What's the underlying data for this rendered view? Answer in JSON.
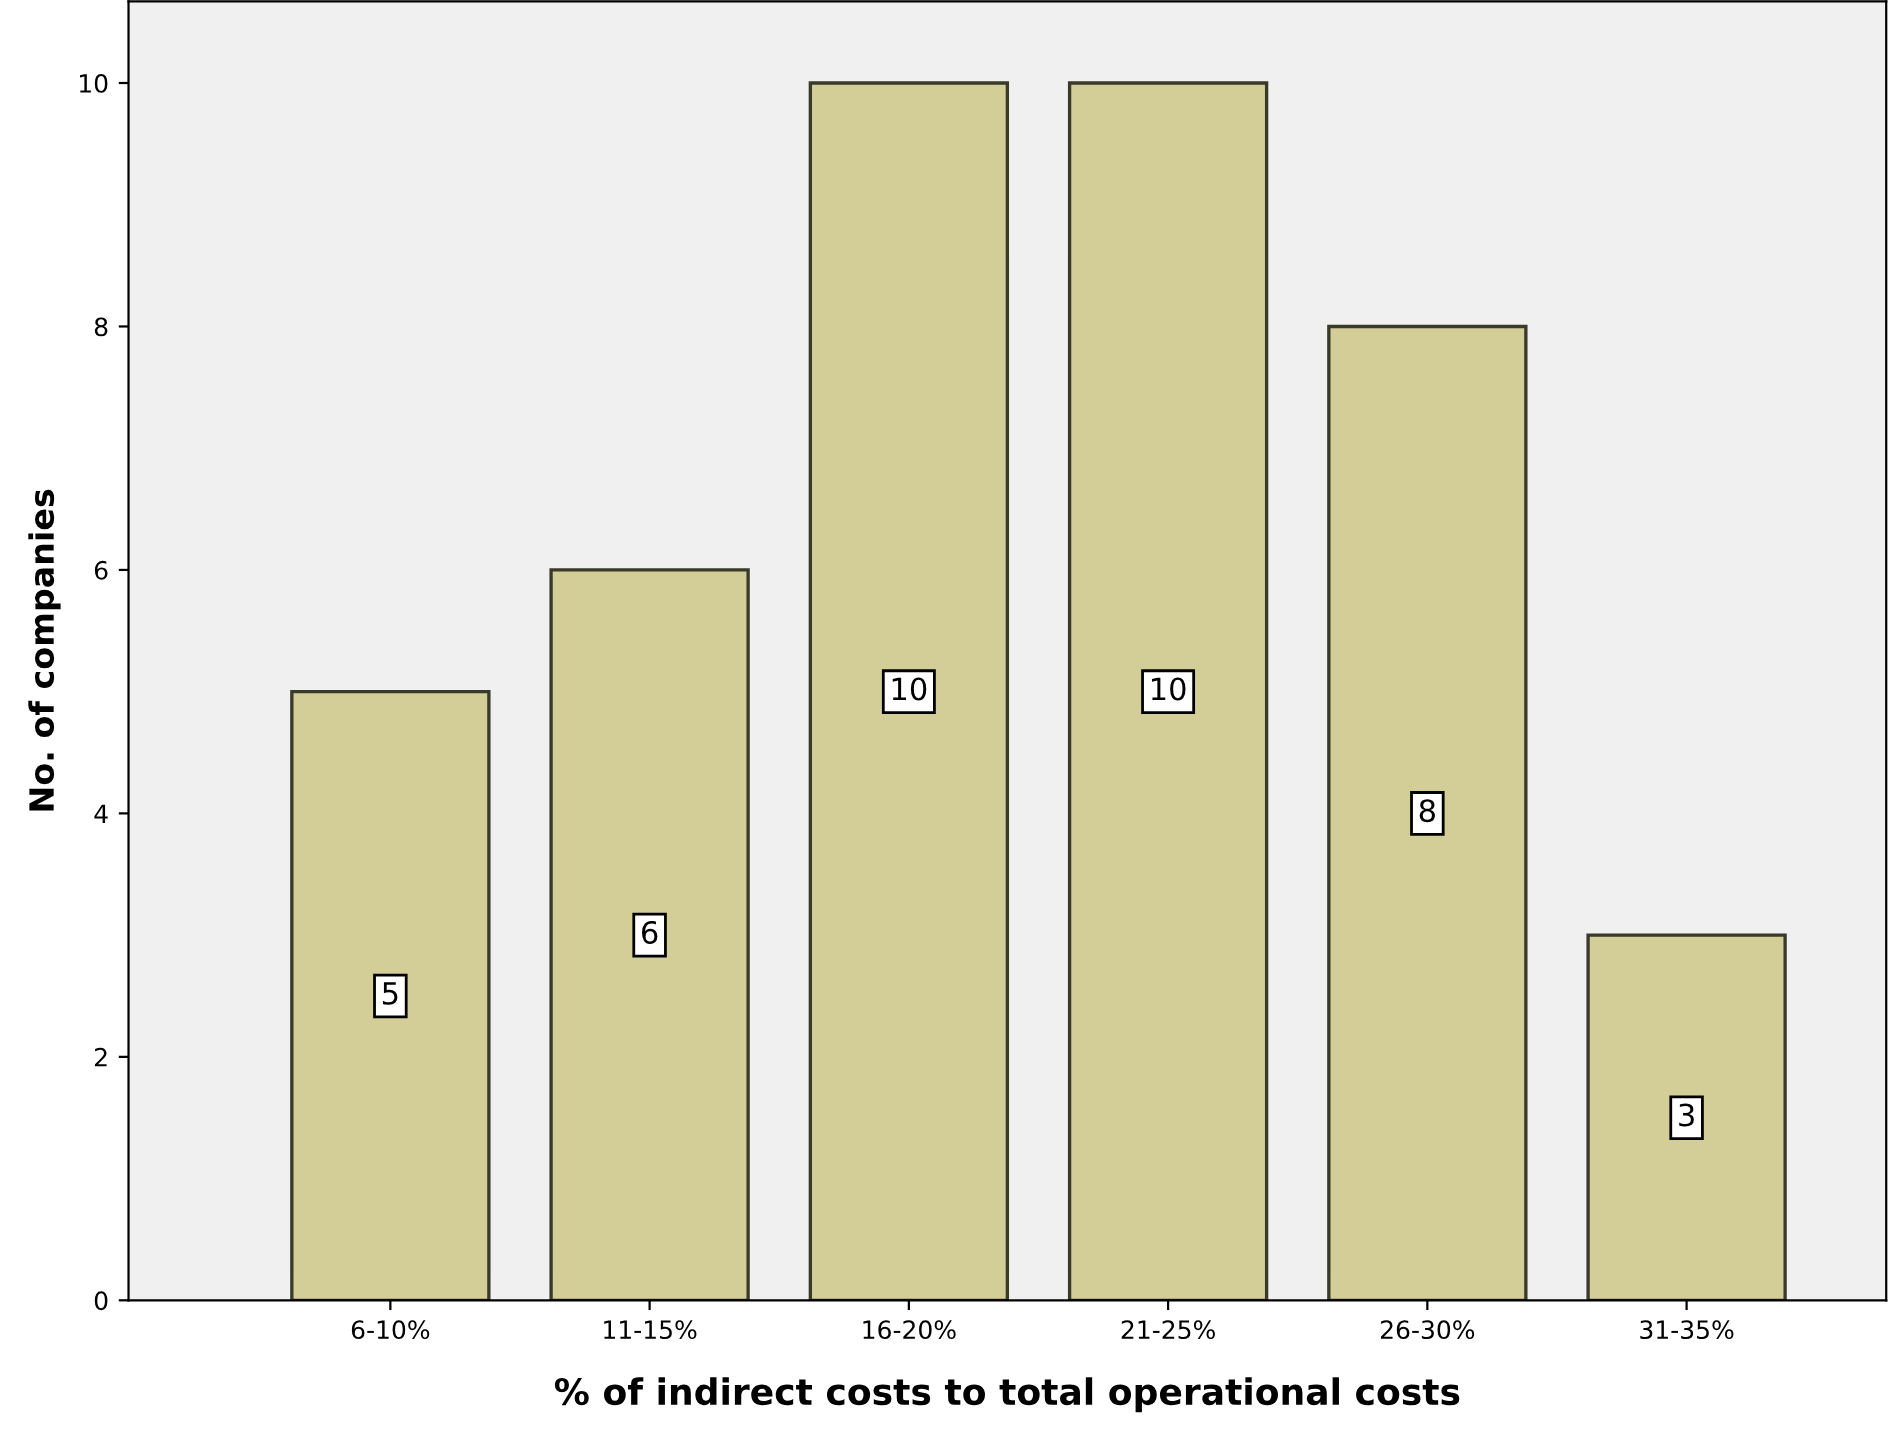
{
  "chart_data": {
    "type": "bar",
    "xlabel": "% of indirect costs to total operational costs",
    "ylabel": "No. of companies",
    "categories": [
      "6-10%",
      "11-15%",
      "16-20%",
      "21-25%",
      "26-30%",
      "31-35%"
    ],
    "values": [
      5,
      6,
      10,
      10,
      8,
      3
    ],
    "color": "#d3ce97",
    "ylim": [
      0,
      10.67
    ],
    "yticks": [
      0,
      2,
      4,
      6,
      8,
      10
    ],
    "grid": false,
    "data_labels": true
  }
}
